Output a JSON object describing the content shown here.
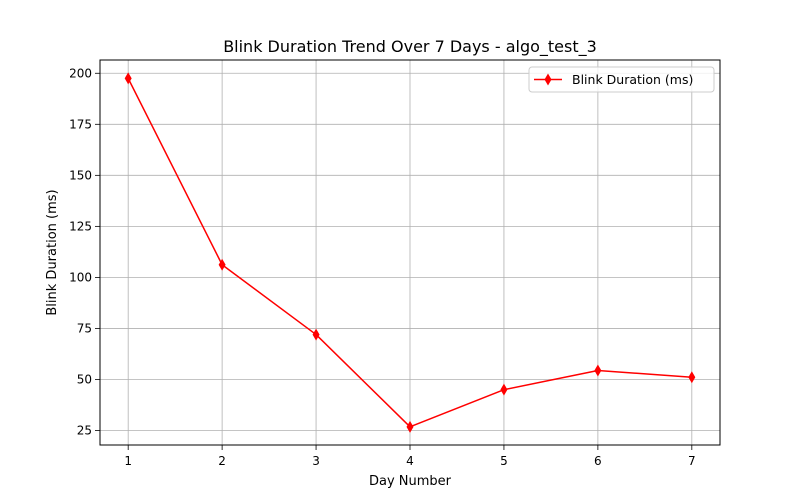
{
  "chart_data": {
    "type": "line",
    "title": "Blink Duration Trend Over 7 Days - algo_test_3",
    "xlabel": "Day Number",
    "ylabel": "Blink Duration (ms)",
    "x": [
      1,
      2,
      3,
      4,
      5,
      6,
      7
    ],
    "series": [
      {
        "name": "Blink Duration (ms)",
        "values": [
          197.5,
          106.2,
          72.0,
          26.8,
          45.0,
          54.4,
          51.1
        ],
        "color": "#ff0000",
        "marker": "thin-diamond"
      }
    ],
    "xlim": [
      0.7,
      7.3
    ],
    "ylim": [
      17.9,
      206.5
    ],
    "xticks": [
      1,
      2,
      3,
      4,
      5,
      6,
      7
    ],
    "xtick_labels": [
      "1",
      "2",
      "3",
      "4",
      "5",
      "6",
      "7"
    ],
    "yticks": [
      25,
      50,
      75,
      100,
      125,
      150,
      175,
      200
    ],
    "ytick_labels": [
      "25",
      "50",
      "75",
      "100",
      "125",
      "150",
      "175",
      "200"
    ],
    "grid": true,
    "legend_position": "top-right",
    "colors": {
      "grid": "#b0b0b0",
      "axes": "#000000",
      "legend_border": "#cccccc"
    }
  }
}
